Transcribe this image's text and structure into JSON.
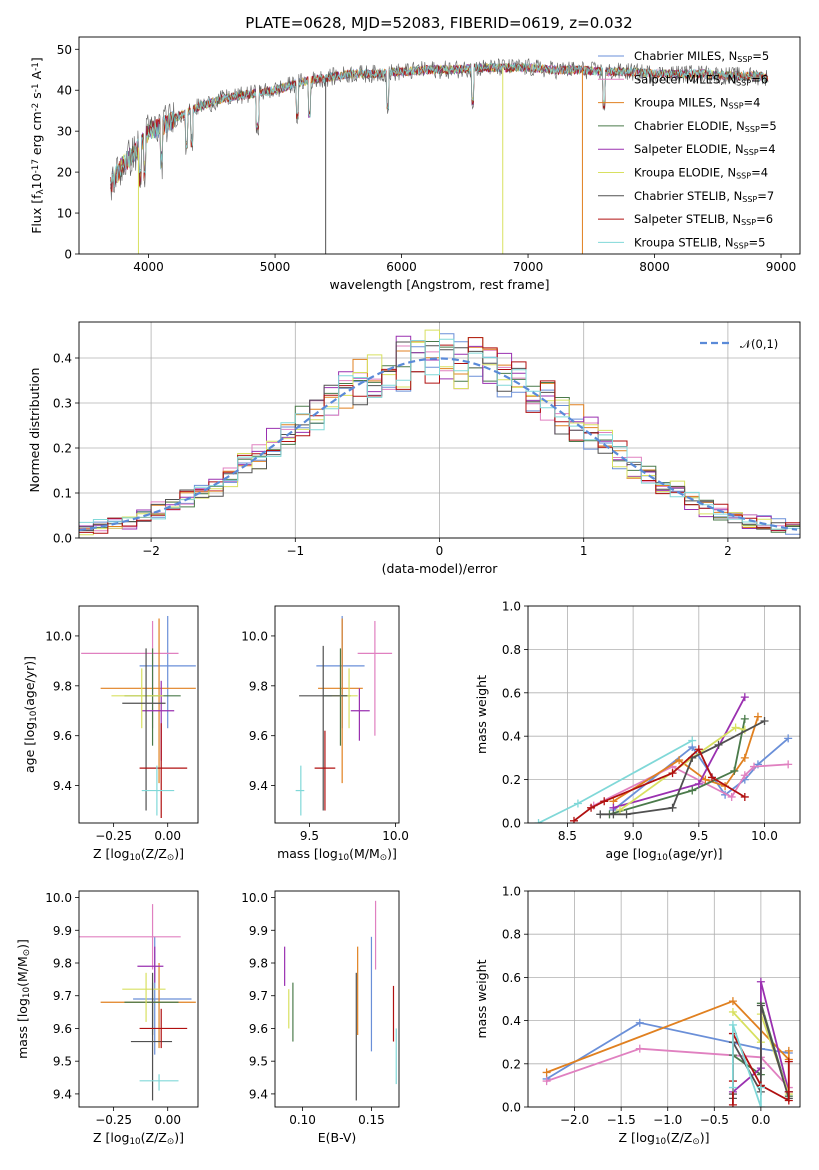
{
  "colors": {
    "Chabrier MILES": "#6a8fd8",
    "Salpeter MILES": "#e080c0",
    "Kroupa MILES": "#e08020",
    "Chabrier ELODIE": "#4a7a4a",
    "Salpeter ELODIE": "#9a30b0",
    "Kroupa ELODIE": "#d8e060",
    "Chabrier STELIB": "#505050",
    "Salpeter STELIB": "#b01010",
    "Kroupa STELIB": "#80d8d8"
  },
  "chart_data": [
    {
      "type": "line",
      "title": "PLATE=0628, MJD=52083, FIBERID=0619, z=0.032",
      "xlabel": "wavelength [Angstrom, rest frame]",
      "ylabel": "Flux [f$_\\lambda$10$^{-17}$ erg cm$^{-2}$ s$^{-1}$ A$^{-1}$]",
      "xlim": [
        3450,
        9150
      ],
      "ylim": [
        0,
        53
      ],
      "xticks": [
        "4000",
        "5000",
        "6000",
        "7000",
        "8000",
        "9000"
      ],
      "yticks": [
        "0",
        "10",
        "20",
        "30",
        "40",
        "50"
      ],
      "legend_position": "top-right",
      "legend": [
        "Chabrier MILES, N$_{SSP}$=5",
        "Salpeter MILES, N$_{SSP}$=6",
        "Kroupa MILES, N$_{SSP}$=4",
        "Chabrier ELODIE, N$_{SSP}$=5",
        "Salpeter ELODIE, N$_{SSP}$=4",
        "Kroupa ELODIE, N$_{SSP}$=4",
        "Chabrier STELIB, N$_{SSP}$=7",
        "Salpeter STELIB, N$_{SSP}$=6",
        "Kroupa STELIB, N$_{SSP}$=5"
      ],
      "continuum": {
        "x": [
          3700,
          3800,
          3900,
          4000,
          4100,
          4200,
          4400,
          4600,
          4800,
          5000,
          5200,
          5400,
          5600,
          5800,
          6000,
          6200,
          6400,
          6600,
          6800,
          7000,
          7200,
          7400,
          7600,
          7800,
          8000,
          8200,
          8400,
          8600,
          8800,
          8900
        ],
        "y": [
          17,
          22,
          25,
          30,
          31,
          33,
          36,
          38,
          39,
          40,
          42,
          43,
          44,
          44,
          44.5,
          45,
          45,
          45.5,
          45.5,
          45.5,
          45,
          45,
          44.5,
          44.5,
          44,
          44,
          44,
          43.5,
          43.5,
          43
        ]
      },
      "dropouts": [
        {
          "x": 3920,
          "series": "Kroupa ELODIE"
        },
        {
          "x": 6800,
          "series": "Kroupa ELODIE"
        },
        {
          "x": 7430,
          "series": "Kroupa MILES"
        },
        {
          "x": 5400,
          "series": "Chabrier STELIB"
        }
      ]
    },
    {
      "type": "line",
      "xlabel": "(data-model)/error",
      "ylabel": "Normed distribution",
      "xlim": [
        -2.5,
        2.5
      ],
      "ylim": [
        0,
        0.48
      ],
      "xticks": [
        "−2",
        "−1",
        "0",
        "1",
        "2"
      ],
      "yticks": [
        "0.0",
        "0.1",
        "0.2",
        "0.3",
        "0.4"
      ],
      "grid": true,
      "legend_position": "top-right",
      "reference": {
        "name": "$\\mathcal{N}(0,1)$",
        "mean": 0,
        "sigma": 1
      },
      "bin_width": 0.1,
      "series_note": "step histograms, one per model, scattering around N(0,1)"
    },
    {
      "type": "scatter",
      "xlabel": "Z [log$_{10}$(Z/Z$_\\odot$)]",
      "ylabel": "age  [log$_{10}$(age/yr)]",
      "xlim": [
        -0.41,
        0.14
      ],
      "ylim": [
        9.25,
        10.12
      ],
      "xticks": [
        "−0.25",
        "0.00"
      ],
      "yticks": [
        "9.4",
        "9.6",
        "9.8",
        "10.0"
      ],
      "points": [
        {
          "series": "Chabrier MILES",
          "x": 0.0,
          "y": 9.88,
          "xerr": [
            0.13,
            0.13
          ],
          "yerr": [
            0.25,
            0.2
          ]
        },
        {
          "series": "Salpeter MILES",
          "x": -0.07,
          "y": 9.93,
          "xerr": [
            0.33,
            0.12
          ],
          "yerr": [
            0.3,
            0.13
          ]
        },
        {
          "series": "Kroupa MILES",
          "x": -0.04,
          "y": 9.79,
          "xerr": [
            0.27,
            0.17
          ],
          "yerr": [
            0.38,
            0.28
          ]
        },
        {
          "series": "Chabrier ELODIE",
          "x": -0.07,
          "y": 9.76,
          "xerr": [
            0.13,
            0.13
          ],
          "yerr": [
            0.2,
            0.19
          ]
        },
        {
          "series": "Salpeter ELODIE",
          "x": -0.03,
          "y": 9.7,
          "xerr": [
            0.09,
            0.06
          ],
          "yerr": [
            0.2,
            0.12
          ]
        },
        {
          "series": "Kroupa ELODIE",
          "x": -0.12,
          "y": 9.76,
          "xerr": [
            0.14,
            0.1
          ],
          "yerr": [
            0.13,
            0.11
          ]
        },
        {
          "series": "Chabrier STELIB",
          "x": -0.1,
          "y": 9.73,
          "xerr": [
            0.11,
            0.09
          ],
          "yerr": [
            0.43,
            0.22
          ]
        },
        {
          "series": "Salpeter STELIB",
          "x": -0.03,
          "y": 9.47,
          "xerr": [
            0.1,
            0.12
          ],
          "yerr": [
            0.2,
            0.18
          ]
        },
        {
          "series": "Kroupa STELIB",
          "x": -0.05,
          "y": 9.38,
          "xerr": [
            0.07,
            0.08
          ],
          "yerr": [
            0.1,
            0.1
          ]
        }
      ]
    },
    {
      "type": "scatter",
      "xlabel": "mass [log$_{10}$(M/M$_\\odot$)]",
      "xlim": [
        9.3,
        10.02
      ],
      "ylim": [
        9.25,
        10.12
      ],
      "xticks": [
        "9.5",
        "10.0"
      ],
      "yticks": [
        "9.4",
        "9.6",
        "9.8",
        "10.0"
      ],
      "points": [
        {
          "series": "Chabrier MILES",
          "x": 9.69,
          "y": 9.88,
          "xerr": [
            0.15,
            0.13
          ],
          "yerr": [
            0.25,
            0.2
          ]
        },
        {
          "series": "Salpeter MILES",
          "x": 9.88,
          "y": 9.93,
          "xerr": [
            0.1,
            0.1
          ],
          "yerr": [
            0.33,
            0.13
          ]
        },
        {
          "series": "Kroupa MILES",
          "x": 9.69,
          "y": 9.79,
          "xerr": [
            0.14,
            0.12
          ],
          "yerr": [
            0.38,
            0.28
          ]
        },
        {
          "series": "Chabrier ELODIE",
          "x": 9.68,
          "y": 9.76,
          "xerr": [
            0.1,
            0.06
          ],
          "yerr": [
            0.2,
            0.19
          ]
        },
        {
          "series": "Salpeter ELODIE",
          "x": 9.79,
          "y": 9.7,
          "xerr": [
            0.05,
            0.06
          ],
          "yerr": [
            0.12,
            0.09
          ]
        },
        {
          "series": "Kroupa ELODIE",
          "x": 9.73,
          "y": 9.76,
          "xerr": [
            0.1,
            0.05
          ],
          "yerr": [
            0.13,
            0.11
          ]
        },
        {
          "series": "Chabrier STELIB",
          "x": 9.58,
          "y": 9.76,
          "xerr": [
            0.14,
            0.14
          ],
          "yerr": [
            0.46,
            0.2
          ]
        },
        {
          "series": "Salpeter STELIB",
          "x": 9.59,
          "y": 9.47,
          "xerr": [
            0.06,
            0.06
          ],
          "yerr": [
            0.17,
            0.15
          ]
        },
        {
          "series": "Kroupa STELIB",
          "x": 9.45,
          "y": 9.38,
          "xerr": [
            0.03,
            0.02
          ],
          "yerr": [
            0.1,
            0.1
          ]
        }
      ]
    },
    {
      "type": "line",
      "xlabel": "age  [log$_{10}$(age/yr)]",
      "ylabel": "mass weight",
      "xlim": [
        8.2,
        10.27
      ],
      "ylim": [
        0,
        1.0
      ],
      "xticks": [
        "8.5",
        "9.0",
        "9.5",
        "10.0"
      ],
      "yticks": [
        "0.0",
        "0.2",
        "0.4",
        "0.6",
        "0.8",
        "1.0"
      ],
      "grid": true,
      "series": [
        {
          "name": "Chabrier MILES",
          "x": [
            8.85,
            9.45,
            9.7,
            9.85,
            9.95,
            10.18
          ],
          "y": [
            0.06,
            0.35,
            0.13,
            0.2,
            0.27,
            0.39
          ]
        },
        {
          "name": "Salpeter MILES",
          "x": [
            8.7,
            9.3,
            9.75,
            9.85,
            9.92,
            10.18
          ],
          "y": [
            0.08,
            0.26,
            0.12,
            0.22,
            0.26,
            0.27
          ]
        },
        {
          "name": "Kroupa MILES",
          "x": [
            8.85,
            9.35,
            9.55,
            9.7,
            9.85,
            9.95
          ],
          "y": [
            0.1,
            0.29,
            0.2,
            0.17,
            0.3,
            0.49
          ]
        },
        {
          "name": "Chabrier ELODIE",
          "x": [
            8.82,
            9.45,
            9.77,
            9.85
          ],
          "y": [
            0.04,
            0.15,
            0.24,
            0.48
          ]
        },
        {
          "name": "Salpeter ELODIE",
          "x": [
            8.85,
            9.5,
            9.85
          ],
          "y": [
            0.07,
            0.18,
            0.58
          ]
        },
        {
          "name": "Kroupa ELODIE",
          "x": [
            8.9,
            9.45,
            9.78,
            9.85
          ],
          "y": [
            0.06,
            0.3,
            0.44,
            0.43
          ]
        },
        {
          "name": "Chabrier STELIB",
          "x": [
            8.75,
            8.85,
            8.95,
            9.3,
            9.45,
            9.65,
            10.0
          ],
          "y": [
            0.04,
            0.04,
            0.04,
            0.07,
            0.3,
            0.36,
            0.47
          ]
        },
        {
          "name": "Salpeter STELIB",
          "x": [
            8.55,
            8.68,
            8.78,
            9.3,
            9.5,
            9.6,
            9.85
          ],
          "y": [
            0.01,
            0.07,
            0.1,
            0.23,
            0.34,
            0.21,
            0.12
          ]
        },
        {
          "name": "Kroupa STELIB",
          "x": [
            8.28,
            8.58,
            9.45
          ],
          "y": [
            0.0,
            0.09,
            0.38
          ]
        }
      ]
    },
    {
      "type": "scatter",
      "xlabel": "Z [log$_{10}$(Z/Z$_\\odot$)]",
      "ylabel": "mass [log$_{10}$(M/M$_\\odot$)]",
      "xlim": [
        -0.41,
        0.14
      ],
      "ylim": [
        9.36,
        10.02
      ],
      "xticks": [
        "−0.25",
        "0.00"
      ],
      "yticks": [
        "9.4",
        "9.5",
        "9.6",
        "9.7",
        "9.8",
        "9.9",
        "10.0"
      ],
      "points": [
        {
          "series": "Chabrier MILES",
          "x": -0.06,
          "y": 9.69,
          "xerr": [
            0.1,
            0.17
          ],
          "yerr": [
            0.17,
            0.19
          ]
        },
        {
          "series": "Salpeter MILES",
          "x": -0.07,
          "y": 9.88,
          "xerr": [
            0.34,
            0.13
          ],
          "yerr": [
            0.1,
            0.1
          ]
        },
        {
          "series": "Kroupa MILES",
          "x": -0.04,
          "y": 9.68,
          "xerr": [
            0.27,
            0.17
          ],
          "yerr": [
            0.14,
            0.12
          ]
        },
        {
          "series": "Chabrier ELODIE",
          "x": -0.07,
          "y": 9.68,
          "xerr": [
            0.13,
            0.12
          ],
          "yerr": [
            0.1,
            0.06
          ]
        },
        {
          "series": "Salpeter ELODIE",
          "x": -0.06,
          "y": 9.79,
          "xerr": [
            0.08,
            0.04
          ],
          "yerr": [
            0.05,
            0.06
          ]
        },
        {
          "series": "Kroupa ELODIE",
          "x": -0.1,
          "y": 9.72,
          "xerr": [
            0.11,
            0.09
          ],
          "yerr": [
            0.1,
            0.05
          ]
        },
        {
          "series": "Chabrier STELIB",
          "x": -0.07,
          "y": 9.56,
          "xerr": [
            0.1,
            0.09
          ],
          "yerr": [
            0.18,
            0.21
          ]
        },
        {
          "series": "Salpeter STELIB",
          "x": -0.03,
          "y": 9.6,
          "xerr": [
            0.1,
            0.12
          ],
          "yerr": [
            0.06,
            0.06
          ]
        },
        {
          "series": "Kroupa STELIB",
          "x": -0.04,
          "y": 9.44,
          "xerr": [
            0.09,
            0.09
          ],
          "yerr": [
            0.03,
            0.02
          ]
        }
      ]
    },
    {
      "type": "scatter",
      "xlabel": "E(B-V)",
      "xlim": [
        0.08,
        0.17
      ],
      "ylim": [
        9.36,
        10.02
      ],
      "xticks": [
        "0.10",
        "0.15"
      ],
      "yticks": [
        "9.4",
        "9.5",
        "9.6",
        "9.7",
        "9.8",
        "9.9",
        "10.0"
      ],
      "points": [
        {
          "series": "Chabrier MILES",
          "x": 0.15,
          "y": 9.69,
          "xerr": [
            0,
            0
          ],
          "yerr": [
            0.16,
            0.19
          ]
        },
        {
          "series": "Salpeter MILES",
          "x": 0.153,
          "y": 9.88,
          "xerr": [
            0,
            0
          ],
          "yerr": [
            0.1,
            0.11
          ]
        },
        {
          "series": "Kroupa MILES",
          "x": 0.14,
          "y": 9.72,
          "xerr": [
            0,
            0
          ],
          "yerr": [
            0.14,
            0.13
          ]
        },
        {
          "series": "Chabrier ELODIE",
          "x": 0.093,
          "y": 9.65,
          "xerr": [
            0,
            0
          ],
          "yerr": [
            0.09,
            0.09
          ]
        },
        {
          "series": "Salpeter ELODIE",
          "x": 0.087,
          "y": 9.79,
          "xerr": [
            0,
            0
          ],
          "yerr": [
            0.06,
            0.06
          ]
        },
        {
          "series": "Kroupa ELODIE",
          "x": 0.09,
          "y": 9.67,
          "xerr": [
            0,
            0
          ],
          "yerr": [
            0.07,
            0.05
          ]
        },
        {
          "series": "Chabrier STELIB",
          "x": 0.139,
          "y": 9.58,
          "xerr": [
            0,
            0
          ],
          "yerr": [
            0.2,
            0.19
          ]
        },
        {
          "series": "Salpeter STELIB",
          "x": 0.166,
          "y": 9.64,
          "xerr": [
            0,
            0
          ],
          "yerr": [
            0.08,
            0.09
          ]
        },
        {
          "series": "Kroupa STELIB",
          "x": 0.168,
          "y": 9.5,
          "xerr": [
            0,
            0
          ],
          "yerr": [
            0.07,
            0.1
          ]
        }
      ]
    },
    {
      "type": "line",
      "xlabel": "Z [log$_{10}$(Z/Z$_\\odot$)]",
      "ylabel": "mass weight",
      "xlim": [
        -2.5,
        0.42
      ],
      "ylim": [
        0,
        1.0
      ],
      "xticks": [
        "−2.0",
        "−1.5",
        "−1.0",
        "−0.5",
        "0.0"
      ],
      "yticks": [
        "0.0",
        "0.2",
        "0.4",
        "0.6",
        "0.8",
        "1.0"
      ],
      "grid": true,
      "series": [
        {
          "name": "Chabrier MILES",
          "x": [
            -2.3,
            -1.3,
            0.0,
            0.3
          ],
          "y": [
            0.13,
            0.39,
            0.27,
            0.25
          ]
        },
        {
          "name": "Salpeter MILES",
          "x": [
            -2.3,
            -1.3,
            0.0,
            0.3,
            0.3
          ],
          "y": [
            0.12,
            0.27,
            0.23,
            0.09,
            0.22
          ]
        },
        {
          "name": "Kroupa MILES",
          "x": [
            -2.3,
            -0.3,
            0.3,
            0.3
          ],
          "y": [
            0.16,
            0.49,
            0.22,
            0.26
          ]
        },
        {
          "name": "Chabrier ELODIE",
          "x": [
            -0.3,
            0.0,
            0.0,
            0.3
          ],
          "y": [
            0.24,
            0.15,
            0.48,
            0.05
          ]
        },
        {
          "name": "Salpeter ELODIE",
          "x": [
            -0.3,
            0.0,
            0.0,
            0.3
          ],
          "y": [
            0.07,
            0.18,
            0.58,
            0.07
          ]
        },
        {
          "name": "Kroupa ELODIE",
          "x": [
            -0.3,
            0.0,
            0.0,
            0.3
          ],
          "y": [
            0.44,
            0.3,
            0.43,
            0.06
          ]
        },
        {
          "name": "Chabrier STELIB",
          "x": [
            -0.3,
            -0.3,
            -0.3,
            0.0,
            0.0,
            0.3,
            0.3
          ],
          "y": [
            0.04,
            0.06,
            0.3,
            0.07,
            0.47,
            0.04,
            0.07
          ]
        },
        {
          "name": "Salpeter STELIB",
          "x": [
            -0.3,
            -0.3,
            -0.3,
            0.0,
            0.3,
            0.3,
            0.3
          ],
          "y": [
            0.01,
            0.12,
            0.34,
            0.1,
            0.03,
            0.07,
            0.21
          ]
        },
        {
          "name": "Kroupa STELIB",
          "x": [
            -0.3,
            -0.3,
            0.0,
            0.0
          ],
          "y": [
            0.09,
            0.38,
            0.0,
            0.09
          ]
        }
      ]
    }
  ]
}
